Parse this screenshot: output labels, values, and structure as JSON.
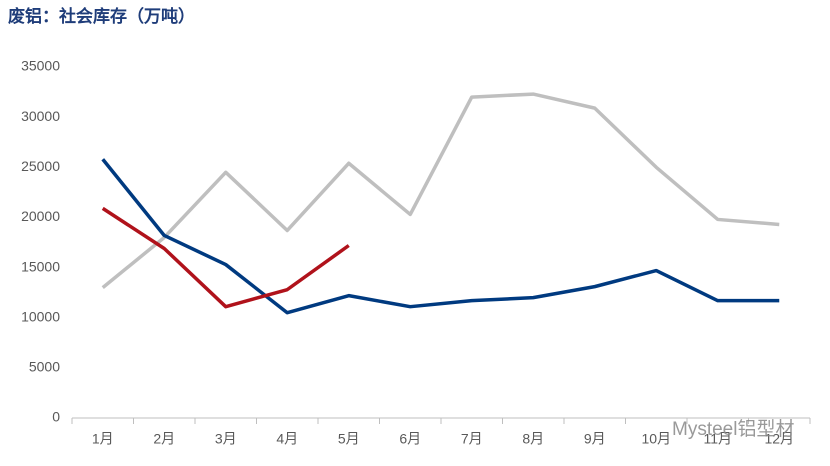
{
  "chart_data": {
    "type": "line",
    "title": "废铝：社会库存（万吨）",
    "categories": [
      "1月",
      "2月",
      "3月",
      "4月",
      "5月",
      "6月",
      "7月",
      "8月",
      "9月",
      "10月",
      "11月",
      "12月"
    ],
    "series": [
      {
        "color": "#bfbfbf",
        "values": [
          13000,
          18000,
          24500,
          18700,
          25400,
          20300,
          32000,
          32300,
          30900,
          25000,
          19800,
          19300
        ]
      },
      {
        "color": "#003a80",
        "values": [
          25800,
          18200,
          15300,
          10500,
          12200,
          11100,
          11700,
          12000,
          13100,
          14700,
          11700,
          11700
        ]
      },
      {
        "color": "#b0121b",
        "values": [
          20900,
          16900,
          11100,
          12800,
          17200,
          null,
          null,
          null,
          null,
          null,
          null,
          null
        ]
      }
    ],
    "ylim": [
      0,
      35000
    ],
    "yticks": [
      0,
      5000,
      10000,
      15000,
      20000,
      25000,
      30000,
      35000
    ],
    "grid": false,
    "watermark": "Mysteel铝型材"
  }
}
